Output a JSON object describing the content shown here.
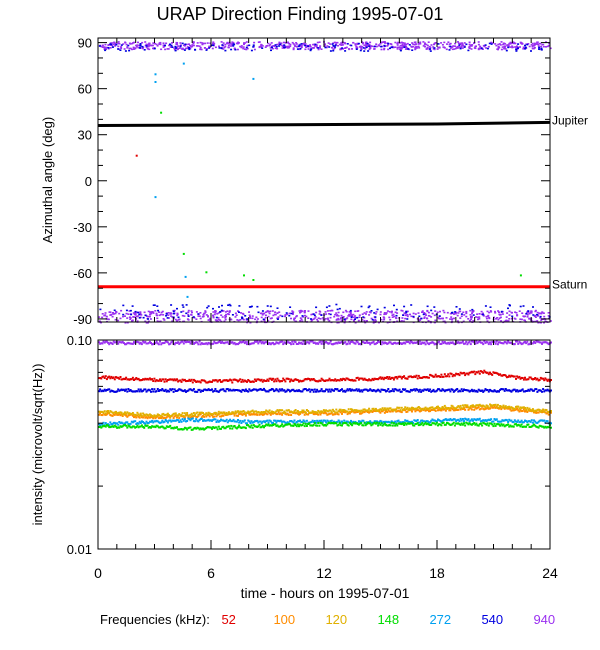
{
  "title": "URAP Direction Finding  1995-07-01",
  "xlabel": "time - hours on 1995-07-01",
  "legend_label": "Frequencies (kHz):",
  "frequencies": [
    {
      "label": "52",
      "color": "#e00000"
    },
    {
      "label": "100",
      "color": "#ff8c00"
    },
    {
      "label": "120",
      "color": "#e0b000"
    },
    {
      "label": "148",
      "color": "#00dd00"
    },
    {
      "label": "272",
      "color": "#00a0f0"
    },
    {
      "label": "540",
      "color": "#0000e0"
    },
    {
      "label": "940",
      "color": "#9a30f0"
    }
  ],
  "chart_data": [
    {
      "type": "scatter",
      "title": "URAP Direction Finding  1995-07-01",
      "ylabel": "Azimuthal angle (deg)",
      "xlim": [
        0,
        24
      ],
      "ylim": [
        -92,
        93
      ],
      "xticks": [
        0,
        6,
        12,
        18,
        24
      ],
      "yticks": [
        90,
        60,
        30,
        0,
        -30,
        -60,
        -90
      ],
      "reference_lines": [
        {
          "name": "Jupiter",
          "color": "#000000",
          "points": [
            [
              0,
              36
            ],
            [
              10,
              36.5
            ],
            [
              18,
              37
            ],
            [
              24,
              38
            ]
          ]
        },
        {
          "name": "Saturn",
          "color": "#ff0000",
          "points": [
            [
              0,
              -69
            ],
            [
              24,
              -69
            ]
          ]
        }
      ],
      "series": [
        {
          "freq_khz": 940,
          "color": "#9a30f0",
          "bands": [
            [
              86,
              91
            ],
            [
              -92,
              -84
            ]
          ]
        },
        {
          "freq_khz": 540,
          "color": "#0000e0",
          "bands": [
            [
              85,
              90
            ],
            [
              -90,
              -80
            ]
          ]
        },
        {
          "freq_khz": 272,
          "color": "#00a0f0",
          "points": [
            [
              3,
              70
            ],
            [
              3,
              65
            ],
            [
              4.5,
              77
            ],
            [
              8.2,
              67
            ],
            [
              3,
              -10
            ],
            [
              4.6,
              -62
            ],
            [
              4.7,
              -75
            ]
          ]
        },
        {
          "freq_khz": 148,
          "color": "#00dd00",
          "points": [
            [
              3.3,
              45
            ],
            [
              4.5,
              -47
            ],
            [
              5.7,
              -59
            ],
            [
              7.7,
              -61
            ],
            [
              8.2,
              -64
            ],
            [
              22.4,
              -61
            ]
          ]
        },
        {
          "freq_khz": 52,
          "color": "#e00000",
          "points": [
            [
              2,
              17
            ]
          ]
        }
      ]
    },
    {
      "type": "scatter",
      "ylabel": "intensity (microvolt/sqrt(Hz))",
      "xlim": [
        0,
        24
      ],
      "ylim": [
        0.01,
        0.1
      ],
      "yscale": "log",
      "xticks": [
        0,
        6,
        12,
        18,
        24
      ],
      "ytick_labels": [
        "0.10",
        "0.01"
      ],
      "series": [
        {
          "freq_khz": 940,
          "color": "#9a30f0",
          "x": [
            0,
            6,
            12,
            18,
            24
          ],
          "y": [
            0.098,
            0.098,
            0.098,
            0.098,
            0.098
          ]
        },
        {
          "freq_khz": 52,
          "color": "#e00000",
          "x": [
            0,
            3,
            6,
            9,
            12,
            15,
            18,
            20.5,
            22,
            24
          ],
          "y": [
            0.067,
            0.065,
            0.064,
            0.065,
            0.065,
            0.066,
            0.068,
            0.071,
            0.067,
            0.065
          ]
        },
        {
          "freq_khz": 540,
          "color": "#0000e0",
          "x": [
            0,
            6,
            12,
            18,
            24
          ],
          "y": [
            0.058,
            0.058,
            0.058,
            0.058,
            0.058
          ]
        },
        {
          "freq_khz": 100,
          "color": "#ff8c00",
          "x": [
            0,
            3,
            6,
            9,
            12,
            15,
            18,
            21,
            24
          ],
          "y": [
            0.045,
            0.043,
            0.044,
            0.045,
            0.045,
            0.046,
            0.047,
            0.048,
            0.045
          ]
        },
        {
          "freq_khz": 120,
          "color": "#e0b000",
          "x": [
            0,
            3,
            6,
            9,
            12,
            15,
            18,
            21,
            24
          ],
          "y": [
            0.046,
            0.044,
            0.045,
            0.046,
            0.046,
            0.047,
            0.048,
            0.049,
            0.046
          ]
        },
        {
          "freq_khz": 272,
          "color": "#00a0f0",
          "x": [
            0,
            3,
            5,
            8,
            12,
            16,
            20,
            24
          ],
          "y": [
            0.04,
            0.041,
            0.042,
            0.041,
            0.041,
            0.041,
            0.042,
            0.041
          ]
        },
        {
          "freq_khz": 148,
          "color": "#00dd00",
          "x": [
            0,
            3,
            5,
            8,
            12,
            16,
            20,
            24
          ],
          "y": [
            0.039,
            0.039,
            0.038,
            0.039,
            0.04,
            0.04,
            0.04,
            0.039
          ]
        }
      ]
    }
  ]
}
